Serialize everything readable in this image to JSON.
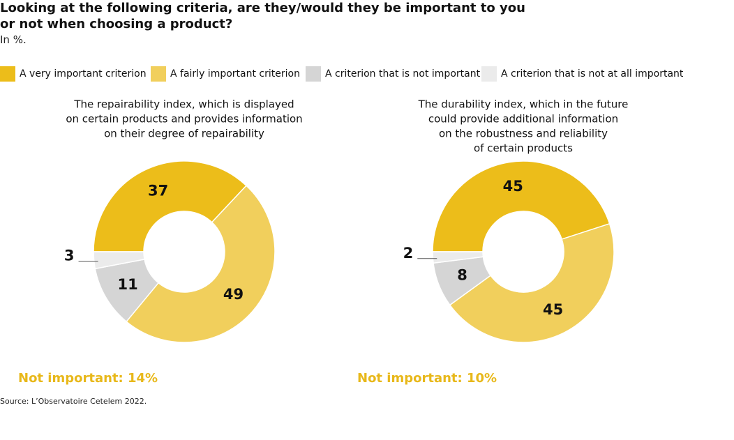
{
  "title": "Looking at the following criteria, are they/would they be important to you or not when choosing a product?",
  "subtitle": "In %.",
  "source": "Source: L’Observatoire Cetelem 2022.",
  "legend": [
    {
      "name": "A very important criterion",
      "color": "#ecbd1a"
    },
    {
      "name": "A fairly important criterion",
      "color": "#f1cf5c"
    },
    {
      "name": "A criterion that is not important",
      "color": "#d5d5d5"
    },
    {
      "name": "A criterion that is not at all important",
      "color": "#ebebeb"
    }
  ],
  "chart_data": [
    {
      "type": "donut",
      "title": [
        "The repairability index, which is displayed",
        "on certain products and provides information",
        "on their degree of repairability"
      ],
      "values": [
        37,
        49,
        11,
        3
      ],
      "note": "Not important: 14%",
      "note_color": "#e8b81a"
    },
    {
      "type": "donut",
      "title": [
        "The durability index, which in the future",
        "could provide additional information",
        "on the robustness and reliability",
        "of certain products"
      ],
      "values": [
        45,
        45,
        8,
        2
      ],
      "note": "Not important: 10%",
      "note_color": "#e8b81a"
    }
  ]
}
